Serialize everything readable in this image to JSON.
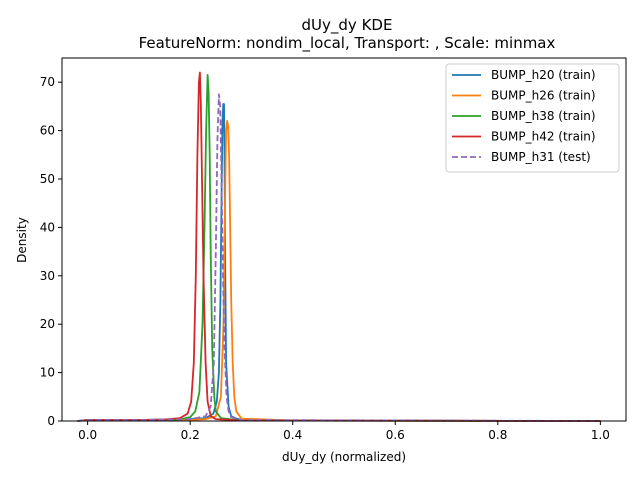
{
  "chart_data": {
    "type": "line",
    "title": "dUy_dy KDE",
    "subtitle": "FeatureNorm: nondim_local, Transport: , Scale: minmax",
    "xlabel": "dUy_dy (normalized)",
    "ylabel": "Density",
    "xlim": [
      -0.05,
      1.05
    ],
    "ylim": [
      0,
      75
    ],
    "xticks": [
      0.0,
      0.2,
      0.4,
      0.6,
      0.8,
      1.0
    ],
    "xtick_labels": [
      "0.0",
      "0.2",
      "0.4",
      "0.6",
      "0.8",
      "1.0"
    ],
    "yticks": [
      0,
      10,
      20,
      30,
      40,
      50,
      60,
      70
    ],
    "ytick_labels": [
      "0",
      "10",
      "20",
      "30",
      "40",
      "50",
      "60",
      "70"
    ],
    "grid": false,
    "legend_position": "top-right",
    "series": [
      {
        "name": "BUMP_h20 (train)",
        "color": "#1f77b4",
        "dash": false,
        "x": [
          -0.02,
          0.0,
          0.1,
          0.2,
          0.23,
          0.245,
          0.252,
          0.256,
          0.259,
          0.261,
          0.263,
          0.2645,
          0.266,
          0.267,
          0.2685,
          0.27,
          0.275,
          0.28,
          0.29,
          0.3,
          0.4,
          1.0
        ],
        "y": [
          0,
          0.2,
          0.2,
          0.4,
          0.6,
          1.5,
          4,
          10,
          25,
          45,
          62,
          65.5,
          65.5,
          55,
          30,
          12,
          3,
          1,
          0.5,
          0.3,
          0.1,
          0
        ]
      },
      {
        "name": "BUMP_h26 (train)",
        "color": "#ff7f0e",
        "dash": false,
        "x": [
          -0.02,
          0.0,
          0.1,
          0.2,
          0.23,
          0.25,
          0.26,
          0.265,
          0.268,
          0.27,
          0.272,
          0.274,
          0.276,
          0.278,
          0.28,
          0.283,
          0.286,
          0.29,
          0.3,
          0.4,
          1.0
        ],
        "y": [
          0,
          0.2,
          0.1,
          0.2,
          0.4,
          1,
          5,
          20,
          45,
          60,
          62,
          61,
          55,
          40,
          25,
          12,
          5,
          2,
          0.5,
          0.1,
          0
        ]
      },
      {
        "name": "BUMP_h38 (train)",
        "color": "#2ca02c",
        "dash": false,
        "x": [
          -0.02,
          0.0,
          0.1,
          0.18,
          0.2,
          0.21,
          0.218,
          0.224,
          0.228,
          0.231,
          0.234,
          0.236,
          0.238,
          0.24,
          0.243,
          0.247,
          0.25,
          0.26,
          0.3,
          1.0
        ],
        "y": [
          0,
          0.2,
          0.2,
          0.3,
          0.8,
          2,
          6,
          20,
          40,
          60,
          71.5,
          68,
          55,
          35,
          15,
          5,
          2,
          0.6,
          0.1,
          0
        ]
      },
      {
        "name": "BUMP_h42 (train)",
        "color": "#d62728",
        "dash": false,
        "x": [
          -0.02,
          0.0,
          0.1,
          0.15,
          0.18,
          0.195,
          0.202,
          0.207,
          0.211,
          0.214,
          0.217,
          0.219,
          0.221,
          0.223,
          0.226,
          0.23,
          0.234,
          0.24,
          0.25,
          0.3,
          1.0
        ],
        "y": [
          0,
          0.2,
          0.2,
          0.3,
          0.6,
          1.5,
          4,
          12,
          30,
          55,
          70,
          72,
          65,
          50,
          30,
          12,
          4,
          1,
          0.4,
          0.1,
          0
        ]
      },
      {
        "name": "BUMP_h31 (test)",
        "color": "#9467bd",
        "dash": true,
        "x": [
          -0.02,
          0.0,
          0.1,
          0.2,
          0.23,
          0.24,
          0.246,
          0.25,
          0.253,
          0.256,
          0.2585,
          0.261,
          0.264,
          0.267,
          0.271,
          0.275,
          0.28,
          0.3,
          1.0
        ],
        "y": [
          0,
          0.2,
          0.2,
          0.4,
          1,
          3,
          12,
          35,
          58,
          67.5,
          65,
          50,
          30,
          15,
          5,
          2,
          0.8,
          0.2,
          0
        ]
      }
    ]
  }
}
